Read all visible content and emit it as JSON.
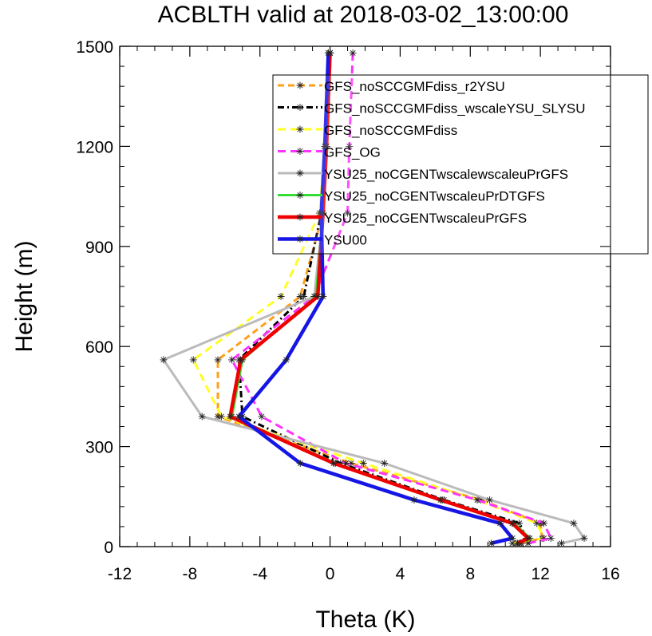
{
  "chart_data": {
    "type": "line",
    "title": "ACBLTH valid at 2018-03-02_13:00:00",
    "xlabel": "Theta (K)",
    "ylabel": "Height (m)",
    "xlim": [
      -12,
      16
    ],
    "ylim": [
      0,
      1500
    ],
    "x_ticks": [
      "-12",
      "-8",
      "-4",
      "0",
      "4",
      "8",
      "12",
      "16"
    ],
    "y_ticks": [
      "0",
      "300",
      "600",
      "900",
      "1200",
      "1500"
    ],
    "grid": false,
    "legend_position": "top-right",
    "heights": [
      10,
      25,
      70,
      140,
      250,
      390,
      560,
      750,
      1000,
      1200,
      1480
    ],
    "series": [
      {
        "name": "GFS_noSCCGMFdiss_r2YSU",
        "color": "#ff9f1c",
        "dash": "8,5",
        "width": 3,
        "values": [
          10.9,
          12.1,
          12.0,
          8.6,
          1.2,
          -6.4,
          -6.4,
          -1.7,
          -0.4,
          -0.2,
          0.0
        ]
      },
      {
        "name": "GFS_noSCCGMFdiss_wscaleYSU_SLYSU",
        "color": "#000000",
        "dash": "8,4,2,4",
        "width": 3,
        "values": [
          10.6,
          11.2,
          10.8,
          6.5,
          0.6,
          -5.0,
          -5.2,
          -1.5,
          -0.5,
          -0.3,
          -0.1
        ]
      },
      {
        "name": "GFS_noSCCGMFdiss",
        "color": "#ffff22",
        "dash": "10,6",
        "width": 3,
        "values": [
          10.4,
          12.2,
          11.8,
          8.4,
          1.9,
          -6.2,
          -7.8,
          -2.8,
          -0.6,
          -0.3,
          0.0
        ]
      },
      {
        "name": "GFS_OG",
        "color": "#ff33ff",
        "dash": "10,6",
        "width": 3,
        "values": [
          11.3,
          12.6,
          12.2,
          8.4,
          0.9,
          -3.9,
          -5.6,
          -0.9,
          1.0,
          1.1,
          1.3
        ]
      },
      {
        "name": "YSU25_noCGENTwscalewscaleuPrGFS",
        "color": "#bbbbbb",
        "dash": "",
        "width": 3,
        "values": [
          13.2,
          14.5,
          13.9,
          9.1,
          3.1,
          -7.3,
          -9.5,
          -0.9,
          -0.4,
          -0.2,
          0.0
        ]
      },
      {
        "name": "YSU25_noCGENTwscaleuPrDTGFS",
        "color": "#33dd33",
        "dash": "",
        "width": 3,
        "values": [
          10.8,
          11.4,
          10.5,
          6.4,
          0.3,
          -5.6,
          -5.0,
          -0.8,
          -0.4,
          -0.2,
          0.0
        ]
      },
      {
        "name": "YSU25_noCGENTwscaleuPrGFS",
        "color": "#ee0000",
        "dash": "",
        "width": 4.5,
        "values": [
          10.7,
          11.3,
          10.4,
          6.3,
          0.2,
          -5.7,
          -5.1,
          -0.7,
          -0.4,
          -0.2,
          0.0
        ]
      },
      {
        "name": "YSU00",
        "color": "#1515e6",
        "dash": "",
        "width": 4.5,
        "values": [
          9.2,
          10.4,
          9.7,
          4.8,
          -1.7,
          -5.2,
          -2.5,
          -0.4,
          -0.5,
          -0.3,
          -0.1
        ]
      }
    ]
  }
}
